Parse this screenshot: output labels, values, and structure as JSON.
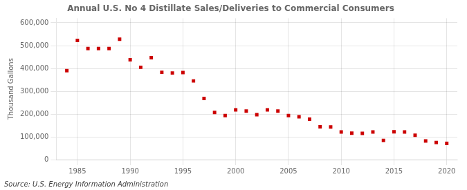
{
  "chart_data": {
    "type": "scatter",
    "title": "Annual U.S. No 4 Distillate Sales/Deliveries to Commercial Consumers",
    "ylabel": "Thousand Gallons",
    "annotation": "Source: U.S. Energy Information Administration",
    "x": [
      1984,
      1985,
      1986,
      1987,
      1988,
      1989,
      1990,
      1991,
      1992,
      1993,
      1994,
      1995,
      1996,
      1997,
      1998,
      1999,
      2000,
      2001,
      2002,
      2003,
      2004,
      2005,
      2006,
      2007,
      2008,
      2009,
      2010,
      2011,
      2012,
      2013,
      2014,
      2015,
      2016,
      2017,
      2018,
      2019,
      2020
    ],
    "values": [
      390000,
      523000,
      487000,
      487000,
      487000,
      528000,
      438000,
      405000,
      447000,
      383000,
      380000,
      382000,
      345000,
      268000,
      207000,
      193000,
      218000,
      213000,
      197000,
      218000,
      213000,
      193000,
      188000,
      177000,
      144000,
      143000,
      121000,
      116000,
      115000,
      121000,
      84000,
      122000,
      121000,
      107000,
      82000,
      75000,
      71000
    ],
    "color": "#cc0000",
    "marker": "square",
    "xlim": [
      1983,
      2021
    ],
    "xticks": [
      1985,
      1990,
      1995,
      2000,
      2005,
      2010,
      2015,
      2020
    ],
    "ylim": [
      0,
      620000
    ],
    "yticks": [
      0,
      {
        "value": 100000,
        "label": "100,000"
      },
      {
        "value": 200000,
        "label": "200,000"
      },
      {
        "value": 300000,
        "label": "300,000"
      },
      {
        "value": 400000,
        "label": "400,000"
      },
      {
        "value": 500000,
        "label": "500,000"
      },
      {
        "value": 600000,
        "label": "600,000"
      }
    ],
    "grid": true
  }
}
